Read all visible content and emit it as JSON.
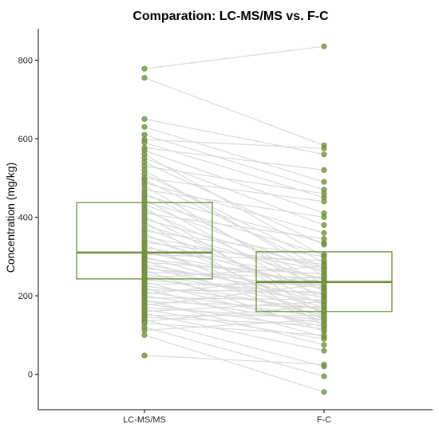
{
  "chart_data": {
    "type": "boxplot-paired",
    "title": "Comparation: LC-MS/MS vs. F-C",
    "xlabel": "",
    "ylabel": "Concentration (mg/kg)",
    "categories": [
      "LC-MS/MS",
      "F-C"
    ],
    "yticks": [
      0,
      200,
      400,
      600,
      800
    ],
    "ylim": [
      -90,
      880
    ],
    "grid": false,
    "colors": {
      "box": "#6b8e3a",
      "point": "#7a9a45",
      "pair_line": "#d9d9d9",
      "axis": "#000000"
    },
    "boxes": [
      {
        "name": "LC-MS/MS",
        "q1": 243,
        "median": 310,
        "q3": 437
      },
      {
        "name": "F-C",
        "q1": 160,
        "median": 235,
        "q3": 312
      }
    ],
    "pairs": [
      [
        778,
        835
      ],
      [
        755,
        583
      ],
      [
        650,
        560
      ],
      [
        630,
        490
      ],
      [
        610,
        470
      ],
      [
        598,
        575
      ],
      [
        590,
        450
      ],
      [
        577,
        520
      ],
      [
        570,
        410
      ],
      [
        560,
        300
      ],
      [
        550,
        380
      ],
      [
        540,
        330
      ],
      [
        530,
        460
      ],
      [
        520,
        250
      ],
      [
        510,
        285
      ],
      [
        500,
        440
      ],
      [
        495,
        270
      ],
      [
        488,
        360
      ],
      [
        480,
        210
      ],
      [
        470,
        400
      ],
      [
        462,
        230
      ],
      [
        455,
        335
      ],
      [
        447,
        190
      ],
      [
        440,
        305
      ],
      [
        432,
        260
      ],
      [
        425,
        150
      ],
      [
        418,
        220
      ],
      [
        410,
        345
      ],
      [
        402,
        175
      ],
      [
        395,
        270
      ],
      [
        388,
        125
      ],
      [
        380,
        240
      ],
      [
        372,
        200
      ],
      [
        365,
        300
      ],
      [
        358,
        155
      ],
      [
        350,
        265
      ],
      [
        343,
        215
      ],
      [
        336,
        280
      ],
      [
        330,
        140
      ],
      [
        323,
        245
      ],
      [
        316,
        180
      ],
      [
        310,
        225
      ],
      [
        305,
        290
      ],
      [
        300,
        170
      ],
      [
        295,
        235
      ],
      [
        290,
        135
      ],
      [
        285,
        255
      ],
      [
        280,
        195
      ],
      [
        275,
        160
      ],
      [
        270,
        220
      ],
      [
        265,
        110
      ],
      [
        260,
        245
      ],
      [
        255,
        185
      ],
      [
        250,
        150
      ],
      [
        245,
        275
      ],
      [
        240,
        205
      ],
      [
        235,
        120
      ],
      [
        230,
        230
      ],
      [
        225,
        165
      ],
      [
        220,
        95
      ],
      [
        215,
        210
      ],
      [
        210,
        145
      ],
      [
        205,
        250
      ],
      [
        200,
        130
      ],
      [
        195,
        190
      ],
      [
        190,
        75
      ],
      [
        185,
        170
      ],
      [
        180,
        115
      ],
      [
        175,
        230
      ],
      [
        170,
        140
      ],
      [
        165,
        90
      ],
      [
        160,
        185
      ],
      [
        155,
        60
      ],
      [
        150,
        150
      ],
      [
        145,
        125
      ],
      [
        140,
        20
      ],
      [
        135,
        175
      ],
      [
        130,
        100
      ],
      [
        120,
        -5
      ],
      [
        112,
        140
      ],
      [
        100,
        -45
      ],
      [
        48,
        25
      ]
    ]
  }
}
